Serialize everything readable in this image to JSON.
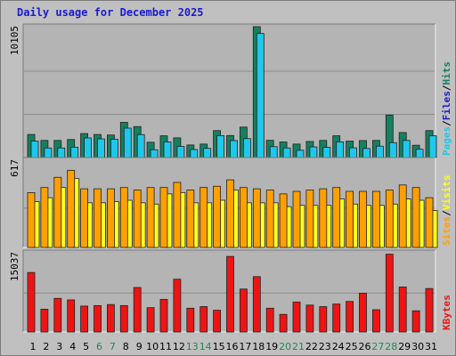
{
  "title": "Daily usage for December 2025",
  "colors": {
    "background": "#c0c0c0",
    "plot_bg": "#b4b4b4",
    "gridline": "#8c8c8c",
    "hits": "#148060",
    "files": "#1ec8ec",
    "pages": "#1ec8ec",
    "visits": "#ffa000",
    "sites": "#ffff20",
    "kbytes": "#ee1414",
    "weekend_label": "#228855",
    "weekday_label": "#000000",
    "title_text": "#1a1ad0"
  },
  "chart_data": [
    {
      "type": "bar",
      "panel": "top",
      "y_max_label": "10105",
      "ylim": [
        0,
        10105
      ],
      "legend": [
        {
          "text": "Pages",
          "color": "#1ec8ec"
        },
        {
          "text": "/",
          "color": "#000000"
        },
        {
          "text": "Files",
          "color": "#1a1ad0"
        },
        {
          "text": "/",
          "color": "#000000"
        },
        {
          "text": "Hits",
          "color": "#148060"
        }
      ],
      "categories": [
        "1",
        "2",
        "3",
        "4",
        "5",
        "6",
        "7",
        "8",
        "9",
        "10",
        "11",
        "12",
        "13",
        "14",
        "15",
        "16",
        "17",
        "18",
        "19",
        "20",
        "21",
        "22",
        "23",
        "24",
        "25",
        "26",
        "27",
        "28",
        "29",
        "30",
        "31"
      ],
      "series": [
        {
          "name": "Hits",
          "values": [
            1780,
            1320,
            1320,
            1390,
            1850,
            1780,
            1740,
            2720,
            2390,
            1180,
            1680,
            1520,
            970,
            1040,
            2080,
            1700,
            2350,
            10105,
            1330,
            1200,
            1040,
            1240,
            1320,
            1680,
            1270,
            1310,
            1320,
            3280,
            1930,
            950,
            2080
          ]
        },
        {
          "name": "Files",
          "values": [
            1270,
            740,
            740,
            800,
            1510,
            1440,
            1410,
            2270,
            1770,
            600,
            1210,
            860,
            620,
            710,
            1690,
            1310,
            1460,
            9580,
            840,
            740,
            560,
            820,
            790,
            1210,
            750,
            700,
            880,
            1150,
            1320,
            640,
            1680
          ]
        }
      ]
    },
    {
      "type": "bar",
      "panel": "middle",
      "y_max_label": "617",
      "ylim": [
        0,
        617
      ],
      "legend": [
        {
          "text": "Sites",
          "color": "#ffa000"
        },
        {
          "text": "/",
          "color": "#000000"
        },
        {
          "text": "Visits",
          "color": "#ffff20"
        }
      ],
      "categories": [
        "1",
        "2",
        "3",
        "4",
        "5",
        "6",
        "7",
        "8",
        "9",
        "10",
        "11",
        "12",
        "13",
        "14",
        "15",
        "16",
        "17",
        "18",
        "19",
        "20",
        "21",
        "22",
        "23",
        "24",
        "25",
        "26",
        "27",
        "28",
        "29",
        "30",
        "31"
      ],
      "series": [
        {
          "name": "Visits",
          "values": [
            360,
            390,
            470,
            540,
            350,
            350,
            360,
            370,
            350,
            340,
            420,
            430,
            350,
            350,
            370,
            450,
            350,
            350,
            350,
            320,
            330,
            330,
            330,
            380,
            340,
            330,
            330,
            340,
            380,
            370,
            290
          ]
        },
        {
          "name": "Sites",
          "values": [
            430,
            470,
            550,
            605,
            460,
            460,
            460,
            470,
            450,
            470,
            470,
            510,
            450,
            470,
            480,
            530,
            470,
            460,
            450,
            420,
            440,
            450,
            460,
            470,
            440,
            440,
            440,
            450,
            490,
            470,
            390
          ]
        }
      ]
    },
    {
      "type": "bar",
      "panel": "bottom",
      "y_max_label": "15037",
      "ylim": [
        0,
        15037
      ],
      "legend": [
        {
          "text": "KBytes",
          "color": "#ee1414"
        }
      ],
      "categories": [
        "1",
        "2",
        "3",
        "4",
        "5",
        "6",
        "7",
        "8",
        "9",
        "10",
        "11",
        "12",
        "13",
        "14",
        "15",
        "16",
        "17",
        "18",
        "19",
        "20",
        "21",
        "22",
        "23",
        "24",
        "25",
        "26",
        "27",
        "28",
        "29",
        "30",
        "31"
      ],
      "series": [
        {
          "name": "KBytes",
          "values": [
            11500,
            4400,
            6500,
            6200,
            5000,
            5100,
            5300,
            5100,
            8600,
            4700,
            6300,
            10200,
            4600,
            4900,
            4200,
            14600,
            8300,
            10700,
            4600,
            3400,
            5800,
            5200,
            4900,
            5400,
            5900,
            7500,
            4300,
            15037,
            8700,
            4100,
            8400
          ]
        }
      ]
    }
  ],
  "weekend_days": [
    "6",
    "7",
    "13",
    "14",
    "20",
    "21",
    "27",
    "28"
  ]
}
